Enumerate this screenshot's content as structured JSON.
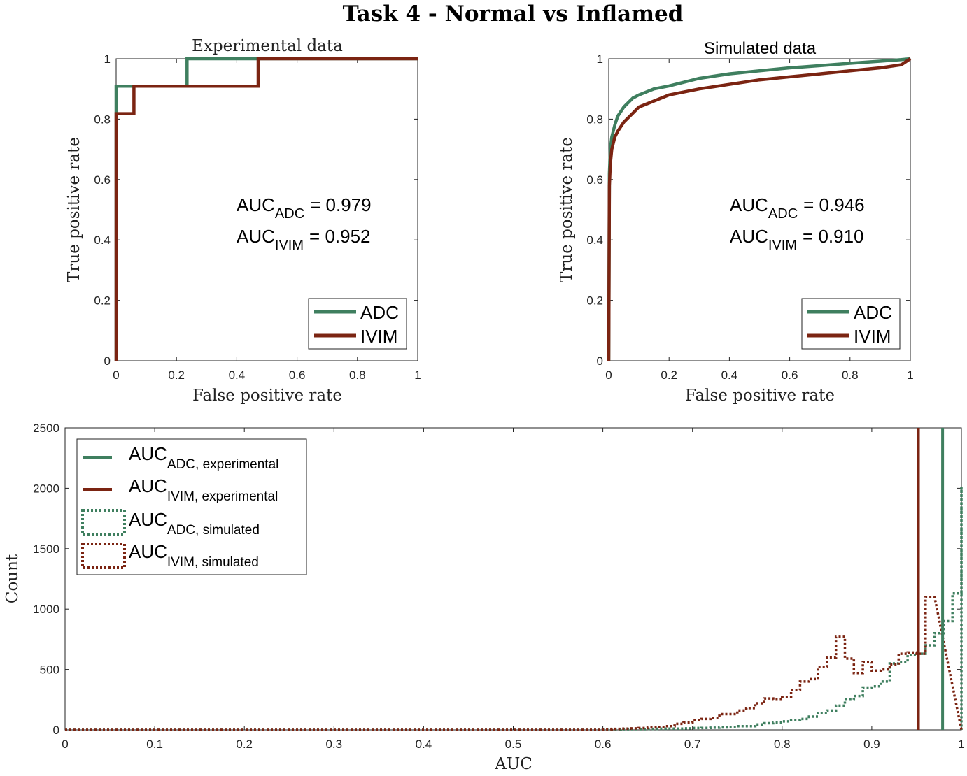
{
  "figure_title": "Task 4 - Normal vs Inflamed",
  "colors": {
    "ADC": "#3f7f5f",
    "IVIM": "#7b2412"
  },
  "chart_data": [
    {
      "type": "line",
      "title": "Experimental data",
      "xlabel": "False positive rate",
      "ylabel": "True positive rate",
      "xlim": [
        0,
        1
      ],
      "ylim": [
        0,
        1
      ],
      "xticks": [
        "0",
        "0.2",
        "0.4",
        "0.6",
        "0.8",
        "1"
      ],
      "yticks": [
        "0",
        "0.2",
        "0.4",
        "0.6",
        "0.8",
        "1"
      ],
      "grid": false,
      "legend_position": "bottom-right",
      "annotation": {
        "adc_label": "AUC",
        "adc_sub": "ADC",
        "adc_value": "= 0.979",
        "ivim_label": "AUC",
        "ivim_sub": "IVIM",
        "ivim_value": "= 0.952"
      },
      "series": [
        {
          "name": "ADC",
          "x": [
            0,
            0,
            0,
            0.235,
            0.235,
            1
          ],
          "y": [
            0,
            0.909,
            0.909,
            0.909,
            1,
            1
          ]
        },
        {
          "name": "IVIM",
          "x": [
            0,
            0,
            0.059,
            0.059,
            0.471,
            0.471,
            1
          ],
          "y": [
            0,
            0.818,
            0.818,
            0.909,
            0.909,
            1,
            1
          ]
        }
      ]
    },
    {
      "type": "line",
      "title": "Simulated data",
      "xlabel": "False positive rate",
      "ylabel": "True positive rate",
      "xlim": [
        0,
        1
      ],
      "ylim": [
        0,
        1
      ],
      "xticks": [
        "0",
        "0.2",
        "0.4",
        "0.6",
        "0.8",
        "1"
      ],
      "yticks": [
        "0",
        "0.2",
        "0.4",
        "0.6",
        "0.8",
        "1"
      ],
      "grid": false,
      "legend_position": "bottom-right",
      "annotation": {
        "adc_label": "AUC",
        "adc_sub": "ADC",
        "adc_value": "= 0.946",
        "ivim_label": "AUC",
        "ivim_sub": "IVIM",
        "ivim_value": "= 0.910"
      },
      "series": [
        {
          "name": "ADC",
          "x": [
            0,
            0.002,
            0.005,
            0.01,
            0.02,
            0.03,
            0.05,
            0.08,
            0.1,
            0.15,
            0.2,
            0.3,
            0.4,
            0.5,
            0.6,
            0.7,
            0.8,
            0.9,
            0.97,
            1
          ],
          "y": [
            0,
            0.62,
            0.7,
            0.74,
            0.78,
            0.81,
            0.84,
            0.87,
            0.88,
            0.9,
            0.91,
            0.935,
            0.95,
            0.96,
            0.97,
            0.977,
            0.985,
            0.992,
            0.997,
            1
          ]
        },
        {
          "name": "IVIM",
          "x": [
            0,
            0.002,
            0.005,
            0.01,
            0.02,
            0.03,
            0.05,
            0.08,
            0.1,
            0.15,
            0.2,
            0.3,
            0.4,
            0.5,
            0.6,
            0.7,
            0.8,
            0.9,
            0.97,
            1
          ],
          "y": [
            0,
            0.58,
            0.65,
            0.7,
            0.74,
            0.76,
            0.79,
            0.82,
            0.84,
            0.86,
            0.88,
            0.9,
            0.915,
            0.93,
            0.94,
            0.95,
            0.96,
            0.97,
            0.98,
            1
          ]
        }
      ]
    },
    {
      "type": "histogram",
      "title": "",
      "xlabel": "AUC",
      "ylabel": "Count",
      "xlim": [
        0,
        1
      ],
      "ylim": [
        0,
        2500
      ],
      "xticks": [
        "0",
        "0.1",
        "0.2",
        "0.3",
        "0.4",
        "0.5",
        "0.6",
        "0.7",
        "0.8",
        "0.9",
        "1"
      ],
      "yticks": [
        "0",
        "500",
        "1000",
        "1500",
        "2000",
        "2500"
      ],
      "grid": false,
      "legend_position": "top-left",
      "legend": [
        {
          "label": "AUC",
          "sub": "ADC, experimental"
        },
        {
          "label": "AUC",
          "sub": "IVIM, experimental"
        },
        {
          "label": "AUC",
          "sub": "ADC, simulated"
        },
        {
          "label": "AUC",
          "sub": "IVIM, simulated"
        }
      ],
      "experimental_lines": {
        "ADC": 0.979,
        "IVIM": 0.952
      },
      "bin_width": 0.01,
      "histograms": [
        {
          "name": "AUC ADC, simulated",
          "bins_start": 0.6,
          "counts": [
            3,
            4,
            5,
            6,
            6,
            8,
            9,
            10,
            10,
            12,
            15,
            16,
            18,
            20,
            25,
            30,
            30,
            45,
            55,
            60,
            70,
            80,
            90,
            110,
            140,
            160,
            200,
            250,
            280,
            350,
            360,
            400,
            550,
            560,
            620,
            630,
            700,
            800,
            900,
            1130,
            2010
          ]
        },
        {
          "name": "AUC IVIM, simulated",
          "bins_start": 0.6,
          "counts": [
            5,
            8,
            10,
            12,
            15,
            20,
            25,
            30,
            50,
            60,
            80,
            90,
            100,
            130,
            130,
            160,
            180,
            220,
            260,
            250,
            270,
            330,
            400,
            420,
            520,
            600,
            770,
            590,
            470,
            560,
            490,
            500,
            540,
            630,
            640,
            630,
            1100
          ]
        }
      ]
    }
  ]
}
